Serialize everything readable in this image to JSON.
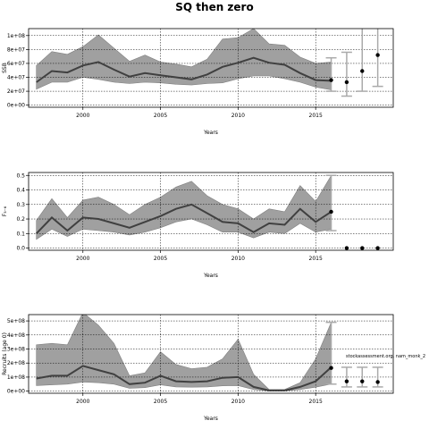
{
  "figure_title": "SQ then zero",
  "watermark": "stockassessment.org, nam_monk_2",
  "colors": {
    "band_fill": "#a0a0a0",
    "band_stroke": "#808080",
    "line": "#404040",
    "forecast": "#aaaaaa",
    "point": "#000000",
    "grid": "#000000"
  },
  "chart_data": [
    {
      "type": "line",
      "xlabel": "Years",
      "ylabel": "SSB",
      "xlim": [
        1996.5,
        2020
      ],
      "ylim": [
        -3000000,
        110000000
      ],
      "xticks": [
        2000,
        2005,
        2010,
        2015
      ],
      "yticks": [
        0,
        20000000,
        40000000,
        60000000,
        80000000,
        100000000
      ],
      "ytick_labels": [
        "0e+00",
        "2e+07",
        "4e+07",
        "6e+07",
        "8e+07",
        "1e+08"
      ],
      "grid": true,
      "x": [
        1997,
        1998,
        1999,
        2000,
        2001,
        2002,
        2003,
        2004,
        2005,
        2006,
        2007,
        2008,
        2009,
        2010,
        2011,
        2012,
        2013,
        2014,
        2015,
        2016
      ],
      "estimate": [
        33000000,
        49000000,
        47000000,
        57000000,
        62000000,
        51000000,
        41000000,
        46000000,
        43000000,
        40000000,
        37000000,
        44000000,
        55000000,
        61000000,
        68000000,
        61000000,
        58000000,
        46000000,
        36000000,
        35000000
      ],
      "lower": [
        23000000,
        33000000,
        33000000,
        40000000,
        37000000,
        33000000,
        31000000,
        33000000,
        32000000,
        30000000,
        29000000,
        31000000,
        32000000,
        38000000,
        42000000,
        42000000,
        38000000,
        33000000,
        26000000,
        22000000
      ],
      "upper": [
        57000000,
        77000000,
        73000000,
        84000000,
        101000000,
        82000000,
        63000000,
        72000000,
        62000000,
        59000000,
        55000000,
        66000000,
        95000000,
        97000000,
        110000000,
        88000000,
        86000000,
        69000000,
        60000000,
        62000000
      ],
      "forecast": [
        {
          "x": 2016,
          "value": 36000000,
          "lower": 20000000,
          "upper": 68000000
        },
        {
          "x": 2017,
          "value": 33000000,
          "lower": 13000000,
          "upper": 76000000
        },
        {
          "x": 2018,
          "value": 49000000,
          "lower": 20000000,
          "upper": 111000000
        },
        {
          "x": 2019,
          "value": 72000000,
          "lower": 27000000,
          "upper": 130000000
        }
      ]
    },
    {
      "type": "line",
      "xlabel": "Years",
      "ylabel": "F₃₋₆",
      "xlim": [
        1996.5,
        2020
      ],
      "ylim": [
        -0.015,
        0.52
      ],
      "xticks": [
        2000,
        2005,
        2010,
        2015
      ],
      "yticks": [
        0,
        0.1,
        0.2,
        0.3,
        0.4,
        0.5
      ],
      "ytick_labels": [
        "0.0",
        "0.1",
        "0.2",
        "0.3",
        "0.4",
        "0.5"
      ],
      "grid": true,
      "x": [
        1997,
        1998,
        1999,
        2000,
        2001,
        2002,
        2003,
        2004,
        2005,
        2006,
        2007,
        2008,
        2009,
        2010,
        2011,
        2012,
        2013,
        2014,
        2015,
        2016
      ],
      "estimate": [
        0.1,
        0.21,
        0.12,
        0.21,
        0.2,
        0.17,
        0.14,
        0.18,
        0.22,
        0.27,
        0.3,
        0.24,
        0.18,
        0.17,
        0.11,
        0.17,
        0.16,
        0.27,
        0.18,
        0.25
      ],
      "lower": [
        0.06,
        0.13,
        0.08,
        0.13,
        0.12,
        0.11,
        0.09,
        0.11,
        0.14,
        0.18,
        0.2,
        0.16,
        0.11,
        0.11,
        0.07,
        0.11,
        0.1,
        0.17,
        0.11,
        0.13
      ],
      "upper": [
        0.19,
        0.34,
        0.21,
        0.33,
        0.35,
        0.3,
        0.23,
        0.3,
        0.35,
        0.42,
        0.46,
        0.36,
        0.3,
        0.27,
        0.2,
        0.27,
        0.25,
        0.43,
        0.32,
        0.5
      ],
      "forecast": [
        {
          "x": 2016,
          "value": 0.25,
          "lower": 0.12,
          "upper": 0.5
        },
        {
          "x": 2017,
          "value": 0.0
        },
        {
          "x": 2018,
          "value": 0.0
        },
        {
          "x": 2019,
          "value": 0.0
        }
      ]
    },
    {
      "type": "line",
      "xlabel": "Years",
      "ylabel": "Recruits (age 0)",
      "xlim": [
        1996.5,
        2020
      ],
      "ylim": [
        -15000000,
        545000000
      ],
      "xticks": [
        2000,
        2005,
        2010,
        2015
      ],
      "yticks": [
        0,
        100000000,
        200000000,
        300000000,
        400000000,
        500000000
      ],
      "ytick_labels": [
        "0e+00",
        "1e+08",
        "2e+08",
        "3e+08",
        "4e+08",
        "5e+08"
      ],
      "grid": true,
      "x": [
        1997,
        1998,
        1999,
        2000,
        2001,
        2002,
        2003,
        2004,
        2005,
        2006,
        2007,
        2008,
        2009,
        2010,
        2011,
        2012,
        2013,
        2014,
        2015,
        2016
      ],
      "estimate": [
        90000000,
        110000000,
        110000000,
        180000000,
        150000000,
        120000000,
        50000000,
        60000000,
        110000000,
        70000000,
        65000000,
        70000000,
        95000000,
        100000000,
        30000000,
        5000000,
        5000000,
        30000000,
        70000000,
        170000000
      ],
      "lower": [
        40000000,
        45000000,
        50000000,
        65000000,
        60000000,
        50000000,
        20000000,
        25000000,
        45000000,
        30000000,
        28000000,
        30000000,
        38000000,
        40000000,
        12000000,
        2000000,
        2000000,
        12000000,
        28000000,
        50000000
      ],
      "upper": [
        330000000,
        340000000,
        330000000,
        560000000,
        470000000,
        340000000,
        110000000,
        130000000,
        280000000,
        190000000,
        160000000,
        170000000,
        230000000,
        370000000,
        120000000,
        12000000,
        12000000,
        60000000,
        230000000,
        490000000
      ],
      "forecast": [
        {
          "x": 2016,
          "value": 165000000,
          "lower": 50000000,
          "upper": 490000000
        },
        {
          "x": 2017,
          "value": 70000000,
          "lower": 30000000,
          "upper": 170000000
        },
        {
          "x": 2018,
          "value": 70000000,
          "lower": 30000000,
          "upper": 170000000
        },
        {
          "x": 2019,
          "value": 65000000,
          "lower": 30000000,
          "upper": 170000000
        }
      ]
    }
  ]
}
